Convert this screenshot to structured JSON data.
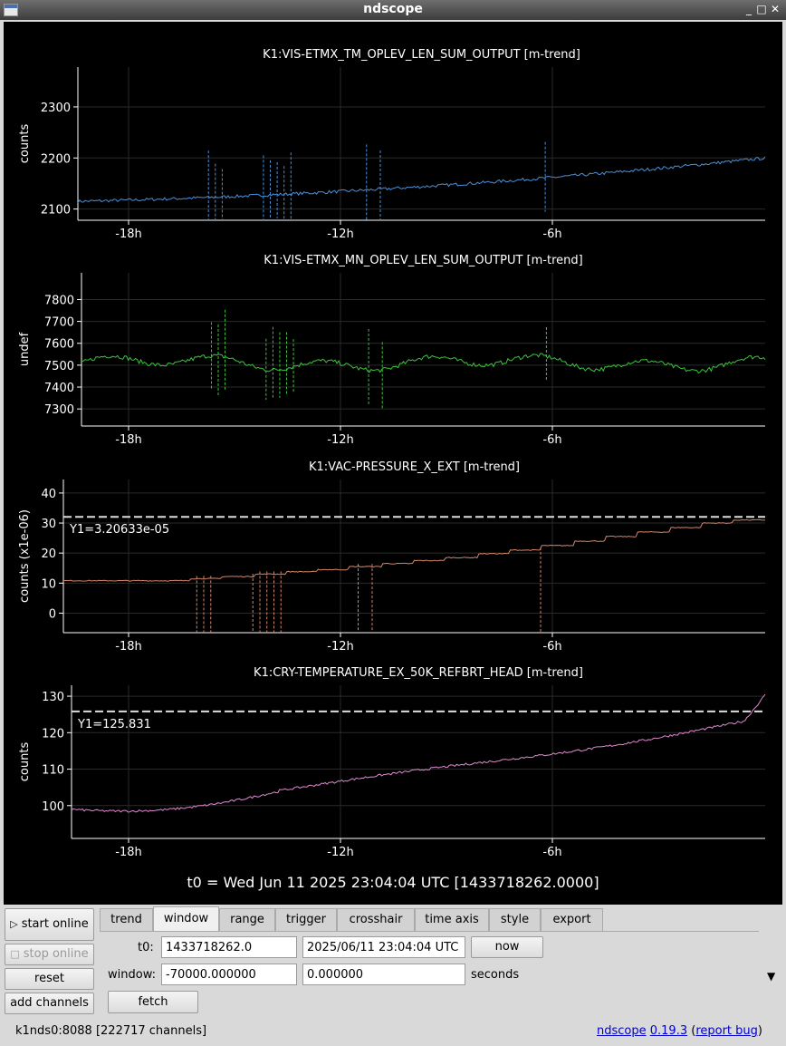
{
  "window": {
    "title": "ndscope"
  },
  "plots": [
    {
      "title": "K1:VIS-ETMX_TM_OPLEV_LEN_SUM_OUTPUT [m-trend]",
      "ylabel": "counts",
      "yticks": [
        2100,
        2200,
        2300
      ],
      "ylim": [
        2078,
        2378
      ],
      "xticks": [
        "-18h",
        "-12h",
        "-6h"
      ],
      "color": "#4a90d9",
      "cursor": null
    },
    {
      "title": "K1:VIS-ETMX_MN_OPLEV_LEN_SUM_OUTPUT [m-trend]",
      "ylabel": "undef",
      "yticks": [
        7300,
        7400,
        7500,
        7600,
        7700,
        7800
      ],
      "ylim": [
        7222,
        7922
      ],
      "xticks": [
        "-18h",
        "-12h",
        "-6h"
      ],
      "color": "#3cc43c",
      "cursor": null
    },
    {
      "title": "K1:VAC-PRESSURE_X_EXT [m-trend]",
      "ylabel": "counts (x1e-06)",
      "yticks": [
        0,
        10,
        20,
        30,
        40
      ],
      "ylim": [
        -6.5,
        44.5
      ],
      "xticks": [
        "-18h",
        "-12h",
        "-6h"
      ],
      "color": "#d4866a",
      "cursor": {
        "label": "Y1=3.20633e-05",
        "value": 32.0633
      }
    },
    {
      "title": "K1:CRY-TEMPERATURE_EX_50K_REFBRT_HEAD [m-trend]",
      "ylabel": "counts",
      "yticks": [
        100,
        110,
        120,
        130
      ],
      "ylim": [
        91,
        133
      ],
      "xticks": [
        "-18h",
        "-12h",
        "-6h"
      ],
      "color": "#e08ad0",
      "cursor": {
        "label": "Y1=125.831",
        "value": 125.831
      }
    }
  ],
  "t0_label": "t0 = Wed Jun 11 2025 23:04:04 UTC [1433718262.0000]",
  "left_buttons": {
    "start_online": "start online",
    "stop_online": "stop online",
    "reset": "reset",
    "add_channels": "add channels"
  },
  "tabs": [
    "trend",
    "window",
    "range",
    "trigger",
    "crosshair",
    "time axis",
    "style",
    "export"
  ],
  "active_tab": "window",
  "window_tab": {
    "t0_label": "t0:",
    "t0_gps": "1433718262.0",
    "t0_utc": "2025/06/11 23:04:04 UTC",
    "now_button": "now",
    "window_label": "window:",
    "window_start": "-70000.000000",
    "window_end": "0.000000",
    "units": "seconds",
    "fetch_button": "fetch"
  },
  "status": {
    "server": "k1nds0:8088",
    "channels": "[222717 channels]",
    "app_name": "ndscope",
    "version": "0.19.3",
    "report_prefix": "(",
    "report_bug": "report bug",
    "report_suffix": ")"
  }
}
